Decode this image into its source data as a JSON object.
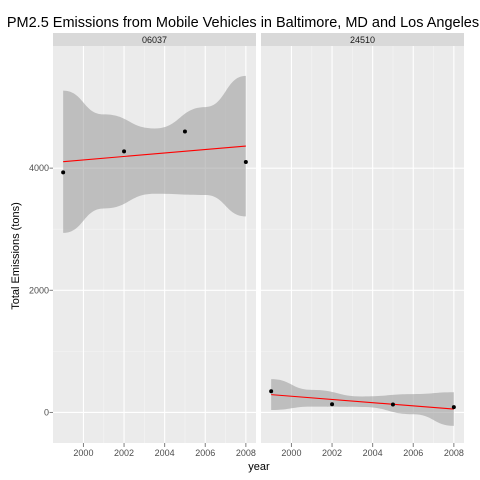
{
  "chart_data": {
    "type": "scatter",
    "title": "PM2.5 Emissions from Mobile Vehicles in Baltimore, MD and Los Angeles",
    "xlabel": "year",
    "ylabel": "Total Emissions (tons)",
    "xlim": [
      1998.5,
      2008.5
    ],
    "ylim": [
      -500,
      6000
    ],
    "x_ticks": [
      2000,
      2002,
      2004,
      2006,
      2008
    ],
    "y_ticks": [
      0,
      2000,
      4000
    ],
    "grid": true,
    "colors": {
      "panel_bg": "#ebebeb",
      "strip_bg": "#d9d9d9",
      "grid_major": "#ffffff",
      "grid_minor": "#f5f5f5",
      "band": "#999999",
      "fit_line": "#ff0000",
      "point": "#000000"
    },
    "facets": [
      {
        "label": "06037",
        "points": {
          "x": [
            1999,
            2002,
            2005,
            2008
          ],
          "y": [
            3931,
            4274,
            4601,
            4101
          ]
        },
        "fit": {
          "x": [
            1999,
            2008
          ],
          "y": [
            4106,
            4362
          ]
        },
        "band": {
          "x": [
            1999,
            2001,
            2003.5,
            2006,
            2008
          ],
          "upper": [
            5270,
            4880,
            4650,
            5000,
            5510
          ],
          "lower": [
            2940,
            3340,
            3580,
            3560,
            3210
          ]
        }
      },
      {
        "label": "24510",
        "points": {
          "x": [
            1999,
            2002,
            2005,
            2008
          ],
          "y": [
            347,
            134,
            130,
            88
          ]
        },
        "fit": {
          "x": [
            1999,
            2008
          ],
          "y": [
            292,
            55
          ]
        },
        "band": {
          "x": [
            1999,
            2001,
            2003.5,
            2006,
            2008
          ],
          "upper": [
            545,
            370,
            262,
            300,
            330
          ],
          "lower": [
            40,
            95,
            90,
            -30,
            -220
          ]
        }
      }
    ]
  }
}
